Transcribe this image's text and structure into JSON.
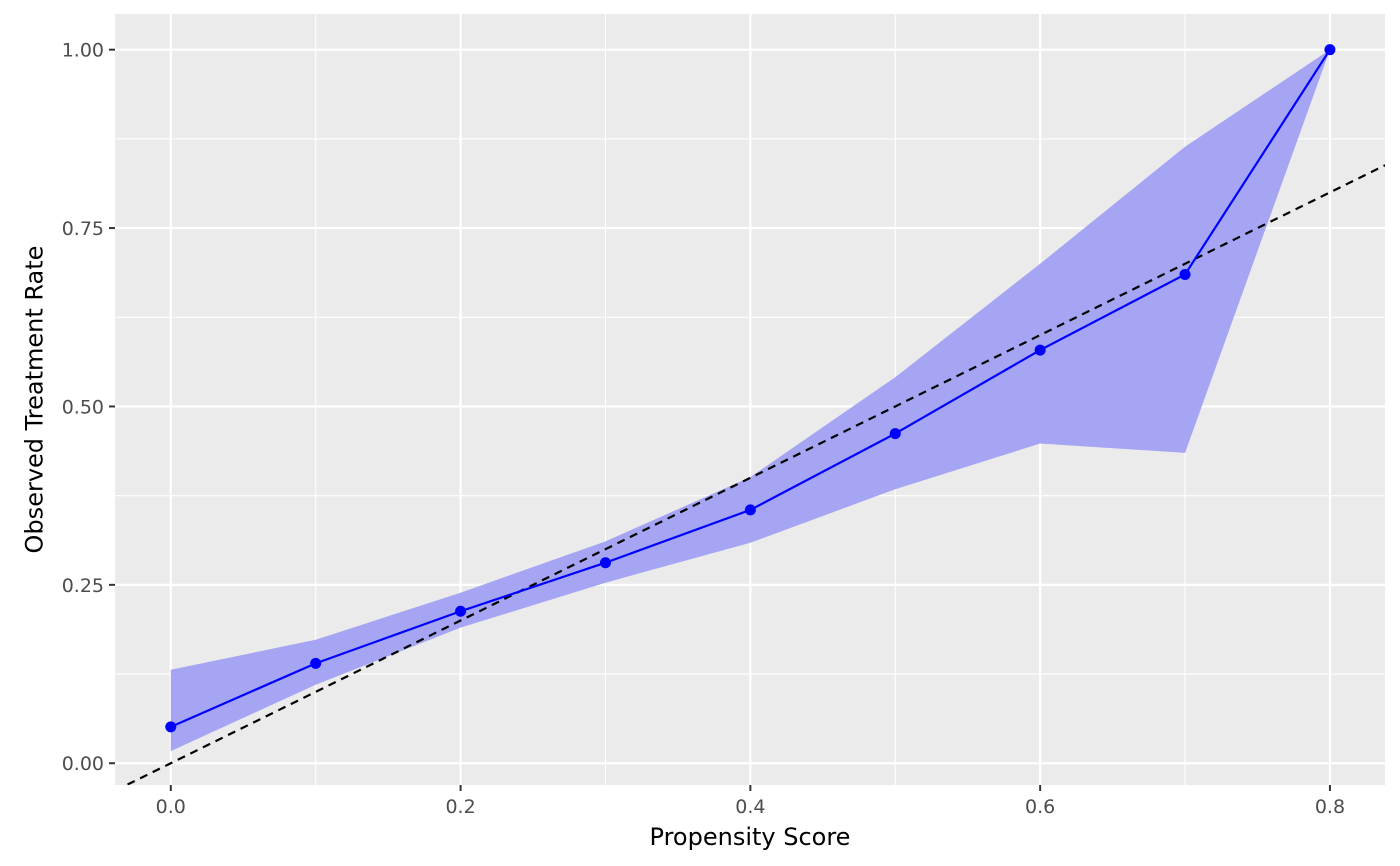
{
  "chart_data": {
    "type": "line",
    "xlabel": "Propensity Score",
    "ylabel": "Observed Treatment Rate",
    "xlim": [
      -0.0385,
      0.838
    ],
    "ylim": [
      -0.0305,
      1.05
    ],
    "x_ticks": [
      0.0,
      0.2,
      0.4,
      0.6,
      0.8
    ],
    "x_tick_labels": [
      "0.0",
      "0.2",
      "0.4",
      "0.6",
      "0.8"
    ],
    "x_minor_ticks": [
      0.1,
      0.3,
      0.5,
      0.7
    ],
    "y_ticks": [
      0.0,
      0.25,
      0.5,
      0.75,
      1.0
    ],
    "y_tick_labels": [
      "0.00",
      "0.25",
      "0.50",
      "0.75",
      "1.00"
    ],
    "y_minor_ticks": [
      0.125,
      0.375,
      0.625,
      0.875
    ],
    "grid": true,
    "legend": "none",
    "series": [
      {
        "x": [
          0.0,
          0.1,
          0.2,
          0.3,
          0.4,
          0.5,
          0.6,
          0.7,
          0.8
        ],
        "y": [
          0.051,
          0.14,
          0.213,
          0.281,
          0.355,
          0.462,
          0.579,
          0.685,
          1.0
        ],
        "ci_lower": [
          0.017,
          0.11,
          0.19,
          0.253,
          0.309,
          0.384,
          0.448,
          0.435,
          1.0
        ],
        "ci_upper": [
          0.131,
          0.173,
          0.239,
          0.311,
          0.401,
          0.541,
          0.7,
          0.864,
          1.0
        ],
        "color": "#0000ff",
        "band_color": "#a5a5f4"
      }
    ],
    "reference_line": {
      "type": "identity",
      "slope": 1,
      "intercept": 0,
      "style": "dashed",
      "color": "#000000"
    }
  }
}
